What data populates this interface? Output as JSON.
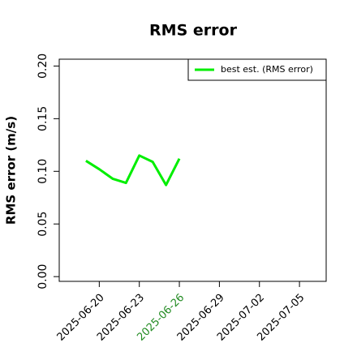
{
  "chart_data": {
    "type": "line",
    "title": "RMS error",
    "y_label": "RMS error (m/s)",
    "x": [
      "2025-06-19",
      "2025-06-20",
      "2025-06-21",
      "2025-06-22",
      "2025-06-23",
      "2025-06-24",
      "2025-06-25",
      "2025-06-26"
    ],
    "series": [
      {
        "name": "best est. (RMS error)",
        "color": "#00ee00",
        "values": [
          0.11,
          0.102,
          0.093,
          0.089,
          0.115,
          0.109,
          0.087,
          0.112
        ]
      }
    ],
    "xlim": [
      "2025-06-17",
      "2025-07-07"
    ],
    "xticks": [
      "2025-06-20",
      "2025-06-23",
      "2025-06-26",
      "2025-06-29",
      "2025-07-02",
      "2025-07-05"
    ],
    "xtick_colors": [
      "#000000",
      "#000000",
      "#228b22",
      "#000000",
      "#000000",
      "#000000"
    ],
    "ylim": [
      -0.0045,
      0.2065
    ],
    "yticks": [
      {
        "value": 0,
        "label": "0.00"
      },
      {
        "value": 0.05,
        "label": "0.05"
      },
      {
        "value": 0.1,
        "label": "0.10"
      },
      {
        "value": 0.15,
        "label": "0.15"
      },
      {
        "value": 0.2,
        "label": "0.20"
      }
    ],
    "legend": "top-right"
  }
}
